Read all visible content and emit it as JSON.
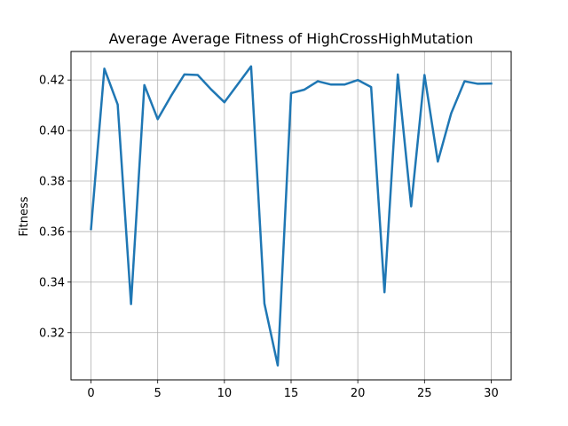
{
  "chart_data": {
    "type": "line",
    "title": "Average Average Fitness of HighCrossHighMutation",
    "xlabel": "",
    "ylabel": "Fitness",
    "xlim": [
      -1.5,
      31.5
    ],
    "ylim": [
      0.3013,
      0.4313
    ],
    "grid": true,
    "xticks": [
      0,
      5,
      10,
      15,
      20,
      25,
      30
    ],
    "yticks": [
      0.32,
      0.34,
      0.36,
      0.38,
      0.4,
      0.42
    ],
    "ytick_labels": [
      "0.32",
      "0.34",
      "0.36",
      "0.38",
      "0.40",
      "0.42"
    ],
    "line_color": "#1f77b4",
    "series": [
      {
        "x": [
          0,
          1,
          2,
          3,
          4,
          5,
          6,
          7,
          8,
          9,
          10,
          11,
          12,
          13,
          14,
          15,
          16,
          17,
          18,
          19,
          20,
          21,
          22,
          23,
          24,
          25,
          26,
          27,
          28,
          29,
          30
        ],
        "values": [
          0.361,
          0.4245,
          0.4103,
          0.3313,
          0.418,
          0.4045,
          0.4137,
          0.4222,
          0.422,
          0.4163,
          0.4112,
          0.4183,
          0.4254,
          0.3315,
          0.307,
          0.4148,
          0.4162,
          0.4195,
          0.4182,
          0.4182,
          0.42,
          0.4172,
          0.336,
          0.4222,
          0.37,
          0.422,
          0.3877,
          0.4068,
          0.4195,
          0.4185,
          0.4186
        ]
      }
    ]
  }
}
